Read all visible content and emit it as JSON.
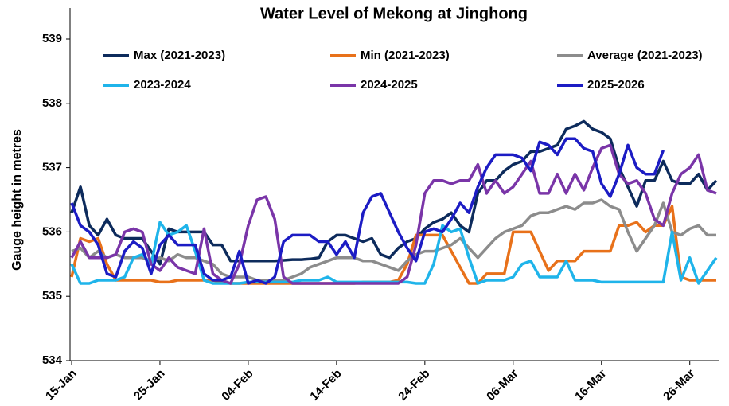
{
  "chart_data": {
    "type": "line",
    "title": "Water Level of Mekong at Jinghong",
    "y_label": "Gauge height in metres",
    "categories": [
      "15-Jan",
      null,
      null,
      null,
      null,
      null,
      null,
      null,
      null,
      null,
      "25-Jan",
      null,
      null,
      null,
      null,
      null,
      null,
      null,
      null,
      null,
      "04-Feb",
      null,
      null,
      null,
      null,
      null,
      null,
      null,
      null,
      null,
      "14-Feb",
      null,
      null,
      null,
      null,
      null,
      null,
      null,
      null,
      null,
      "24-Feb",
      null,
      null,
      null,
      null,
      null,
      null,
      null,
      null,
      null,
      "06-Mar",
      null,
      null,
      null,
      null,
      null,
      null,
      null,
      null,
      null,
      "16-Mar",
      null,
      null,
      null,
      null,
      null,
      null,
      null,
      null,
      null,
      "26-Mar",
      null,
      null,
      null
    ],
    "ylim": [
      534,
      539
    ],
    "yticks": [
      534,
      535,
      536,
      537,
      538,
      539
    ],
    "grid": false,
    "legend": "top",
    "series": [
      {
        "name": "Max (2021-2023)",
        "color": "#0d2b5c",
        "values": [
          536.3,
          536.7,
          536.1,
          535.95,
          536.2,
          535.95,
          535.9,
          535.9,
          535.9,
          535.7,
          535.5,
          536.05,
          536.0,
          536.0,
          536.0,
          536.0,
          535.8,
          535.8,
          535.55,
          535.55,
          535.55,
          535.55,
          535.55,
          535.55,
          535.56,
          535.57,
          535.57,
          535.58,
          535.6,
          535.85,
          535.95,
          535.95,
          535.9,
          535.85,
          535.9,
          535.65,
          535.6,
          535.75,
          535.85,
          535.9,
          536.05,
          536.15,
          536.2,
          536.3,
          536.1,
          536.0,
          536.6,
          536.8,
          536.8,
          536.95,
          537.05,
          537.1,
          537.25,
          537.25,
          537.3,
          537.35,
          537.6,
          537.65,
          537.72,
          537.6,
          537.55,
          537.45,
          537.0,
          536.7,
          536.4,
          536.8,
          536.8,
          537.1,
          536.8,
          536.75,
          536.75,
          536.9,
          536.65,
          536.8
        ]
      },
      {
        "name": "Min (2021-2023)",
        "color": "#e8711a",
        "values": [
          535.3,
          535.9,
          535.85,
          535.9,
          535.5,
          535.25,
          535.25,
          535.25,
          535.25,
          535.25,
          535.22,
          535.22,
          535.25,
          535.25,
          535.25,
          535.25,
          535.25,
          535.22,
          535.2,
          535.2,
          535.2,
          535.2,
          535.2,
          535.2,
          535.2,
          535.2,
          535.2,
          535.2,
          535.2,
          535.2,
          535.2,
          535.2,
          535.2,
          535.22,
          535.22,
          535.22,
          535.22,
          535.25,
          535.5,
          535.95,
          535.95,
          535.95,
          535.95,
          535.7,
          535.45,
          535.2,
          535.2,
          535.35,
          535.35,
          535.35,
          536.0,
          536.0,
          536.0,
          535.7,
          535.4,
          535.55,
          535.55,
          535.55,
          535.7,
          535.7,
          535.7,
          535.7,
          536.1,
          536.1,
          536.15,
          536.0,
          536.1,
          536.1,
          536.4,
          535.3,
          535.25,
          535.25,
          535.25,
          535.25
        ]
      },
      {
        "name": "Average (2021-2023)",
        "color": "#8c8c8c",
        "values": [
          535.7,
          535.75,
          535.6,
          535.7,
          535.6,
          535.65,
          535.6,
          535.6,
          535.6,
          535.55,
          535.6,
          535.55,
          535.65,
          535.6,
          535.6,
          535.55,
          535.5,
          535.35,
          535.3,
          535.3,
          535.3,
          535.25,
          535.25,
          535.25,
          535.25,
          535.3,
          535.35,
          535.45,
          535.5,
          535.55,
          535.6,
          535.6,
          535.6,
          535.55,
          535.55,
          535.5,
          535.45,
          535.4,
          535.55,
          535.65,
          535.7,
          535.7,
          535.75,
          535.8,
          535.9,
          535.75,
          535.6,
          535.75,
          535.9,
          536.0,
          536.05,
          536.1,
          536.25,
          536.3,
          536.3,
          536.35,
          536.4,
          536.35,
          536.45,
          536.45,
          536.5,
          536.4,
          536.35,
          536.0,
          535.7,
          535.9,
          536.1,
          536.45,
          536.0,
          535.95,
          536.05,
          536.1,
          535.95,
          535.95
        ]
      },
      {
        "name": "2023-2024",
        "color": "#1fb4ea",
        "values": [
          535.5,
          535.2,
          535.2,
          535.25,
          535.25,
          535.25,
          535.3,
          535.6,
          535.65,
          535.5,
          536.15,
          535.95,
          536.0,
          536.1,
          535.7,
          535.25,
          535.2,
          535.2,
          535.2,
          535.2,
          535.22,
          535.22,
          535.22,
          535.22,
          535.22,
          535.22,
          535.25,
          535.25,
          535.25,
          535.3,
          535.22,
          535.22,
          535.22,
          535.22,
          535.22,
          535.22,
          535.22,
          535.22,
          535.22,
          535.2,
          535.2,
          535.5,
          536.1,
          536.0,
          536.05,
          535.6,
          535.2,
          535.25,
          535.25,
          535.25,
          535.3,
          535.5,
          535.55,
          535.3,
          535.3,
          535.3,
          535.55,
          535.25,
          535.25,
          535.25,
          535.22,
          535.22,
          535.22,
          535.22,
          535.22,
          535.22,
          535.22,
          535.22,
          536.0,
          535.25,
          535.6,
          535.2,
          535.4,
          535.6
        ]
      },
      {
        "name": "2024-2025",
        "color": "#7a35a8",
        "values": [
          535.6,
          535.85,
          535.6,
          535.6,
          535.6,
          535.65,
          536.0,
          536.05,
          536.0,
          535.5,
          535.4,
          535.6,
          535.45,
          535.4,
          535.35,
          536.05,
          535.35,
          535.25,
          535.2,
          535.5,
          536.1,
          536.5,
          536.55,
          536.2,
          535.3,
          535.2,
          535.2,
          535.2,
          535.2,
          535.2,
          535.2,
          535.2,
          535.2,
          535.2,
          535.2,
          535.2,
          535.2,
          535.2,
          535.3,
          535.8,
          536.6,
          536.8,
          536.8,
          536.75,
          536.8,
          536.8,
          537.05,
          536.6,
          536.8,
          536.6,
          536.7,
          536.9,
          537.1,
          536.6,
          536.6,
          536.9,
          536.6,
          536.9,
          536.65,
          537.0,
          537.3,
          537.35,
          536.9,
          536.75,
          536.8,
          536.6,
          536.2,
          536.1,
          536.6,
          536.9,
          537.0,
          537.2,
          536.65,
          536.6
        ]
      },
      {
        "name": "2025-2026",
        "color": "#1c1cc4",
        "values": [
          536.45,
          536.1,
          536.0,
          535.8,
          535.35,
          535.3,
          535.7,
          535.85,
          535.75,
          535.35,
          535.8,
          535.95,
          535.8,
          535.8,
          535.8,
          535.35,
          535.25,
          535.25,
          535.3,
          535.7,
          535.2,
          535.25,
          535.2,
          535.3,
          535.85,
          535.95,
          535.95,
          535.95,
          535.85,
          535.85,
          535.65,
          535.85,
          535.6,
          536.3,
          536.55,
          536.6,
          536.3,
          536.0,
          535.75,
          535.55,
          536.0,
          536.05,
          536.0,
          536.2,
          536.45,
          536.3,
          536.7,
          537.0,
          537.2,
          537.2,
          537.2,
          537.15,
          536.95,
          537.4,
          537.35,
          537.2,
          537.45,
          537.45,
          537.3,
          537.25,
          536.75,
          536.55,
          536.9,
          537.35,
          537.0,
          536.9,
          536.9,
          537.27,
          null,
          null,
          null,
          null,
          null,
          null
        ]
      }
    ]
  }
}
